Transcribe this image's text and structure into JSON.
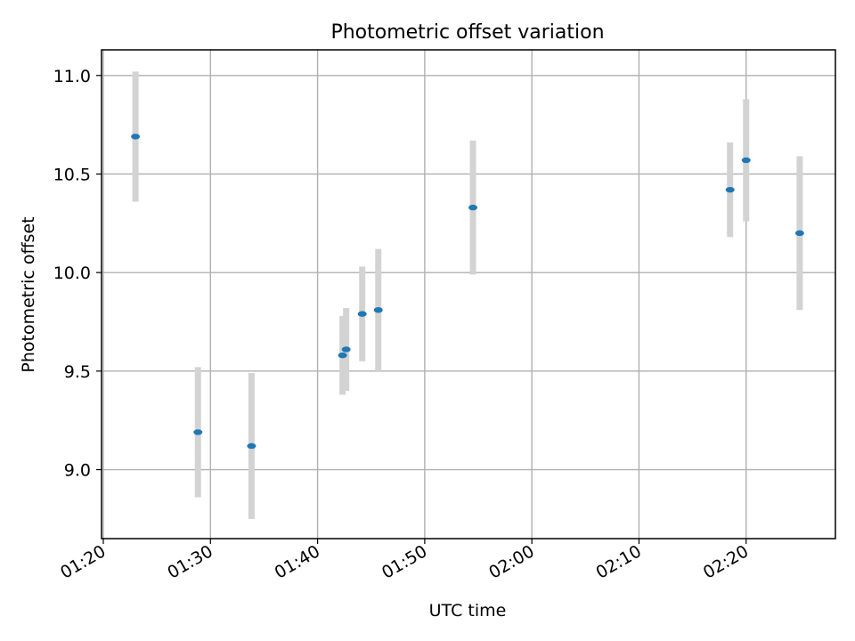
{
  "chart_data": {
    "type": "scatter",
    "title": "Photometric offset variation",
    "xlabel": "UTC time",
    "ylabel": "Photometric offset",
    "x_tick_labels": [
      "01:20",
      "01:30",
      "01:40",
      "01:50",
      "02:00",
      "02:10",
      "02:20"
    ],
    "x_tick_values": [
      "01:20",
      "01:30",
      "01:40",
      "01:50",
      "02:00",
      "02:10",
      "02:20"
    ],
    "xlim": [
      "01:19:50",
      "02:28:20"
    ],
    "y_ticks": [
      9.0,
      9.5,
      10.0,
      10.5,
      11.0
    ],
    "y_tick_labels": [
      "9.0",
      "9.5",
      "10.0",
      "10.5",
      "11.0"
    ],
    "ylim": [
      8.65,
      11.13
    ],
    "grid": true,
    "point_color": "#1f77b4",
    "errorbar_color": "#d3d3d3",
    "series": [
      {
        "points": [
          {
            "x": "01:23:00",
            "y": 10.69,
            "yerr": 0.33
          },
          {
            "x": "01:28:50",
            "y": 9.19,
            "yerr": 0.33
          },
          {
            "x": "01:33:50",
            "y": 9.12,
            "yerr": 0.37
          },
          {
            "x": "01:42:20",
            "y": 9.58,
            "yerr": 0.2
          },
          {
            "x": "01:42:40",
            "y": 9.61,
            "yerr": 0.21
          },
          {
            "x": "01:44:10",
            "y": 9.79,
            "yerr": 0.24
          },
          {
            "x": "01:45:40",
            "y": 9.81,
            "yerr": 0.31
          },
          {
            "x": "01:54:30",
            "y": 10.33,
            "yerr": 0.34
          },
          {
            "x": "02:18:30",
            "y": 10.42,
            "yerr": 0.24
          },
          {
            "x": "02:20:00",
            "y": 10.57,
            "yerr": 0.31
          },
          {
            "x": "02:25:00",
            "y": 10.2,
            "yerr": 0.39
          }
        ]
      }
    ]
  }
}
